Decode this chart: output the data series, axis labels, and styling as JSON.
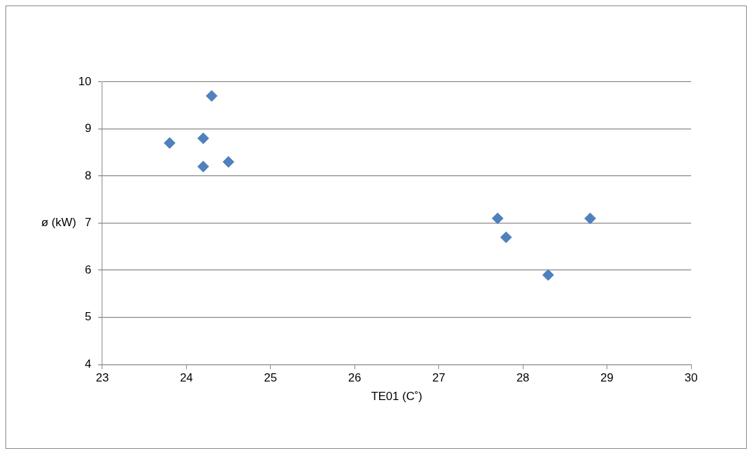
{
  "chart_data": {
    "type": "scatter",
    "xlabel": "TE01 (C˚)",
    "ylabel": "ø (kW)",
    "x": [
      23.8,
      24.2,
      24.2,
      24.3,
      24.5,
      27.7,
      27.8,
      28.3,
      28.8
    ],
    "series": [
      {
        "color": "#4f81bd",
        "values": [
          8.7,
          8.8,
          8.2,
          9.7,
          8.3,
          7.1,
          6.7,
          5.9,
          7.1
        ]
      }
    ],
    "xlim": [
      23,
      30
    ],
    "xticks": [
      23,
      24,
      25,
      26,
      27,
      28,
      29,
      30
    ],
    "ylim": [
      4,
      10
    ],
    "yticks": [
      4,
      5,
      6,
      7,
      8,
      9,
      10
    ],
    "grid": "y",
    "legend": false,
    "marker": "diamond"
  }
}
